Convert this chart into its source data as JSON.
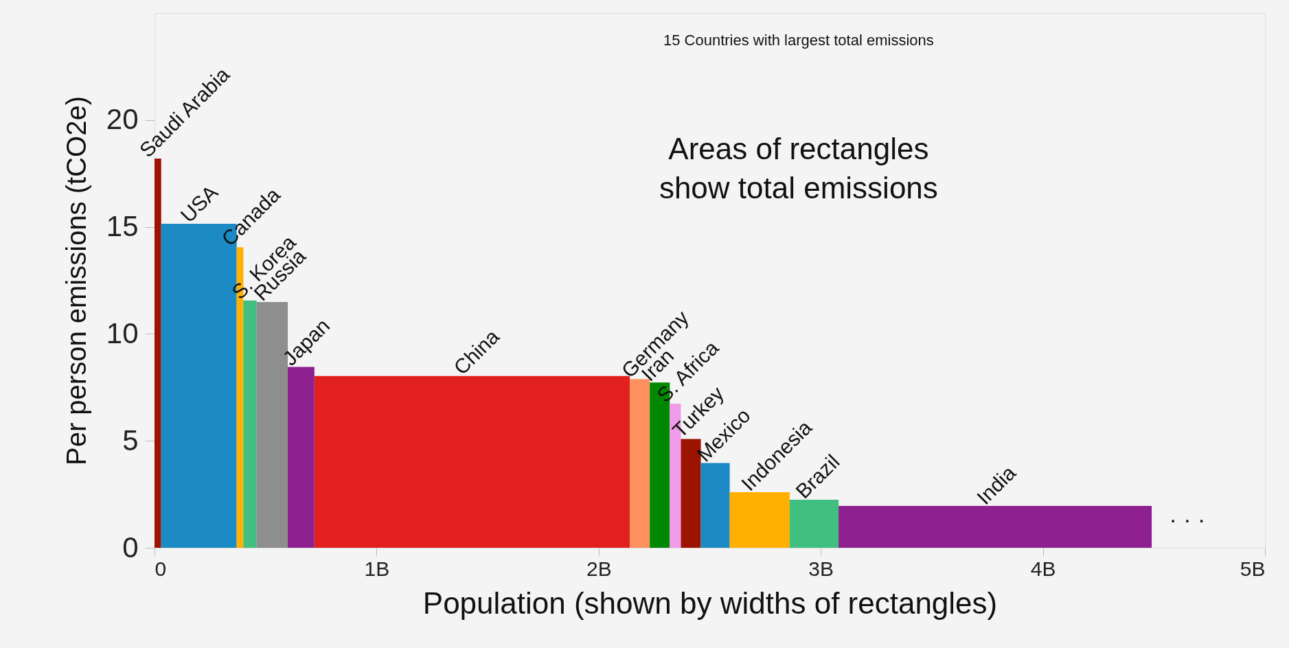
{
  "chart_data": {
    "type": "histogram",
    "xlabel": "Population (shown by widths of rectangles)",
    "ylabel": "Per person emissions (tCO2e)",
    "values": [
      18.2,
      15.15,
      14.05,
      11.56,
      11.49,
      8.46,
      8.03,
      7.89,
      7.73,
      6.74,
      5.09,
      3.96,
      2.6,
      2.25,
      1.96
    ],
    "bins": [
      0,
      0.03,
      0.37,
      0.4,
      0.46,
      0.6,
      0.72,
      2.14,
      2.23,
      2.32,
      2.37,
      2.46,
      2.59,
      2.86,
      3.08,
      4.49
    ],
    "colors": [
      "#9b1400",
      "#1b8ac5",
      "#ffb000",
      "#40bf80",
      "#8e8e8e",
      "#8e2090",
      "#e2211e",
      "#ff9060",
      "#008800",
      "#f09cea",
      "#9b1400",
      "#1b8ac5",
      "#ffb000",
      "#40bf80",
      "#8e2090"
    ],
    "xlim": [
      0,
      5
    ],
    "xticks": [
      0,
      {
        "value": 1,
        "label": "1B"
      },
      {
        "value": 2,
        "label": "2B"
      },
      {
        "value": 3,
        "label": "3B"
      },
      {
        "value": 4,
        "label": "4B"
      },
      {
        "value": 5,
        "label": "5B"
      }
    ],
    "ylim": [
      0,
      25
    ],
    "yticks": [
      0,
      5,
      10,
      15,
      20
    ],
    "grid": false,
    "legend": false,
    "annotations": [
      "15 Countries with largest total emissions",
      "Areas of rectangles\nshow total emissions",
      "· · ·",
      {
        "text": "Saudi Arabia",
        "x": 0.015,
        "y": 18.2
      },
      {
        "text": "USA",
        "x": 0.2,
        "y": 15.15
      },
      {
        "text": "Canada",
        "x": 0.385,
        "y": 14.05
      },
      {
        "text": "S. Korea",
        "x": 0.43,
        "y": 11.56
      },
      {
        "text": "Russia",
        "x": 0.53,
        "y": 11.49
      },
      {
        "text": "Japan",
        "x": 0.66,
        "y": 8.46
      },
      {
        "text": "China",
        "x": 1.43,
        "y": 8.03
      },
      {
        "text": "Germany",
        "x": 2.185,
        "y": 7.89
      },
      {
        "text": "Iran",
        "x": 2.275,
        "y": 7.73
      },
      {
        "text": "S. Africa",
        "x": 2.345,
        "y": 6.74
      },
      {
        "text": "Turkey",
        "x": 2.415,
        "y": 5.09
      },
      {
        "text": "Mexico",
        "x": 2.525,
        "y": 3.96
      },
      {
        "text": "Indonesia",
        "x": 2.725,
        "y": 2.6
      },
      {
        "text": "Brazil",
        "x": 2.97,
        "y": 2.25
      },
      {
        "text": "India",
        "x": 3.785,
        "y": 1.96
      }
    ]
  }
}
